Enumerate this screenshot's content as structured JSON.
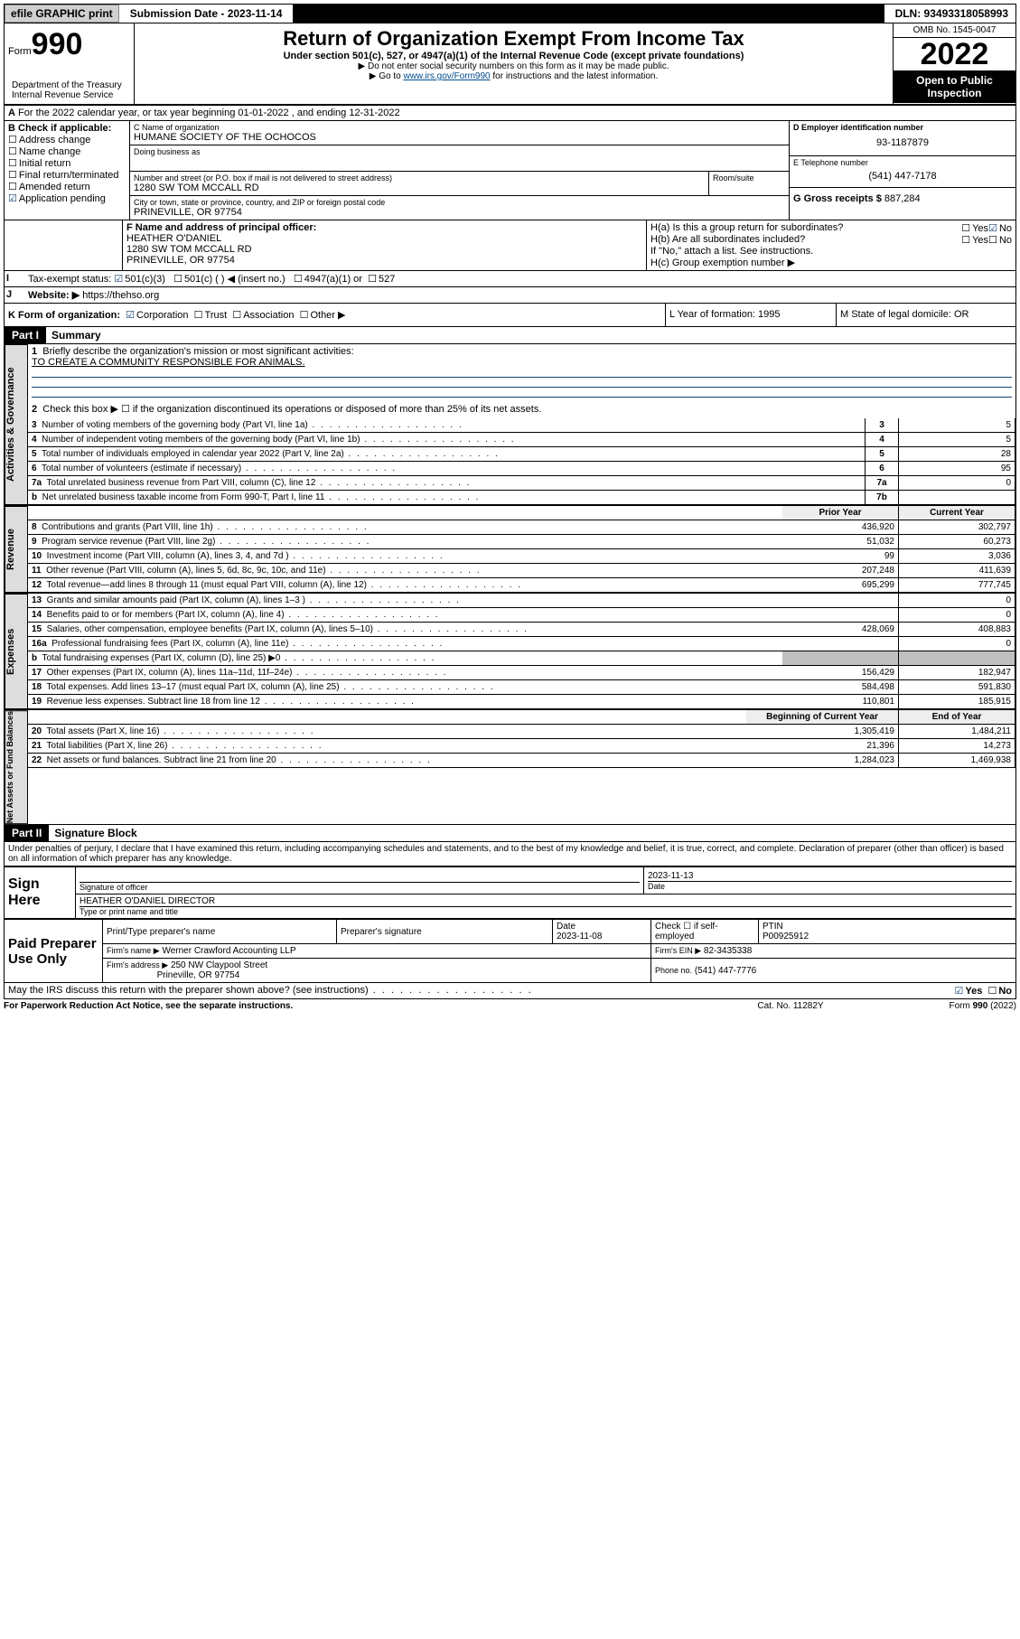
{
  "topbar": {
    "efile": "efile GRAPHIC print",
    "submission_label": "Submission Date - 2023-11-14",
    "dln": "DLN: 93493318058993"
  },
  "header": {
    "form_word": "Form",
    "form_num": "990",
    "title": "Return of Organization Exempt From Income Tax",
    "subtitle": "Under section 501(c), 527, or 4947(a)(1) of the Internal Revenue Code (except private foundations)",
    "note1": "▶ Do not enter social security numbers on this form as it may be made public.",
    "note2_pre": "▶ Go to ",
    "note2_link": "www.irs.gov/Form990",
    "note2_post": " for instructions and the latest information.",
    "dept": "Department of the Treasury\nInternal Revenue Service",
    "omb": "OMB No. 1545-0047",
    "tax_year": "2022",
    "open": "Open to Public Inspection"
  },
  "lineA": {
    "text": "For the 2022 calendar year, or tax year beginning 01-01-2022   , and ending 12-31-2022",
    "label": "A"
  },
  "boxB": {
    "label": "B Check if applicable:",
    "items": [
      "Address change",
      "Name change",
      "Initial return",
      "Final return/terminated",
      "Amended return",
      "Application pending"
    ]
  },
  "boxC": {
    "name_label": "C Name of organization",
    "name": "HUMANE SOCIETY OF THE OCHOCOS",
    "dba_label": "Doing business as",
    "addr_label": "Number and street (or P.O. box if mail is not delivered to street address)",
    "room_label": "Room/suite",
    "addr": "1280 SW TOM MCCALL RD",
    "city_label": "City or town, state or province, country, and ZIP or foreign postal code",
    "city": "PRINEVILLE, OR  97754"
  },
  "boxD": {
    "label": "D Employer identification number",
    "val": "93-1187879"
  },
  "boxE": {
    "label": "E Telephone number",
    "val": "(541) 447-7178"
  },
  "boxG": {
    "label": "G Gross receipts $",
    "val": "887,284"
  },
  "boxF": {
    "label": "F Name and address of principal officer:",
    "l1": "HEATHER O'DANIEL",
    "l2": "1280 SW TOM MCCALL RD",
    "l3": "PRINEVILLE, OR  97754"
  },
  "boxH": {
    "a": "H(a)  Is this a group return for subordinates?",
    "b": "H(b)  Are all subordinates included?",
    "bnote": "If \"No,\" attach a list. See instructions.",
    "c": "H(c)  Group exemption number ▶",
    "yes": "Yes",
    "no": "No"
  },
  "boxI": {
    "label": "Tax-exempt status:",
    "opts": [
      "501(c)(3)",
      "501(c) (  ) ◀ (insert no.)",
      "4947(a)(1) or",
      "527"
    ]
  },
  "boxJ": {
    "label": "Website: ▶",
    "val": "https://thehso.org"
  },
  "boxK": {
    "label": "K Form of organization:",
    "opts": [
      "Corporation",
      "Trust",
      "Association",
      "Other ▶"
    ]
  },
  "boxL": {
    "label": "L Year of formation: 1995"
  },
  "boxM": {
    "label": "M State of legal domicile: OR"
  },
  "part1": {
    "hdr": "Part I",
    "title": "Summary",
    "q1": "Briefly describe the organization's mission or most significant activities:",
    "q1a": "TO CREATE A COMMUNITY RESPONSIBLE FOR ANIMALS.",
    "q2": "Check this box ▶ ☐  if the organization discontinued its operations or disposed of more than 25% of its net assets.",
    "rows_gov": [
      {
        "n": "3",
        "t": "Number of voting members of the governing body (Part VI, line 1a)",
        "ln": "3",
        "v": "5"
      },
      {
        "n": "4",
        "t": "Number of independent voting members of the governing body (Part VI, line 1b)",
        "ln": "4",
        "v": "5"
      },
      {
        "n": "5",
        "t": "Total number of individuals employed in calendar year 2022 (Part V, line 2a)",
        "ln": "5",
        "v": "28"
      },
      {
        "n": "6",
        "t": "Total number of volunteers (estimate if necessary)",
        "ln": "6",
        "v": "95"
      },
      {
        "n": "7a",
        "t": "Total unrelated business revenue from Part VIII, column (C), line 12",
        "ln": "7a",
        "v": "0"
      },
      {
        "n": "b",
        "t": "Net unrelated business taxable income from Form 990-T, Part I, line 11",
        "ln": "7b",
        "v": ""
      }
    ],
    "col_hdr_prior": "Prior Year",
    "col_hdr_curr": "Current Year",
    "rows_rev": [
      {
        "n": "8",
        "t": "Contributions and grants (Part VIII, line 1h)",
        "p": "436,920",
        "c": "302,797"
      },
      {
        "n": "9",
        "t": "Program service revenue (Part VIII, line 2g)",
        "p": "51,032",
        "c": "60,273"
      },
      {
        "n": "10",
        "t": "Investment income (Part VIII, column (A), lines 3, 4, and 7d )",
        "p": "99",
        "c": "3,036"
      },
      {
        "n": "11",
        "t": "Other revenue (Part VIII, column (A), lines 5, 6d, 8c, 9c, 10c, and 11e)",
        "p": "207,248",
        "c": "411,639"
      },
      {
        "n": "12",
        "t": "Total revenue—add lines 8 through 11 (must equal Part VIII, column (A), line 12)",
        "p": "695,299",
        "c": "777,745"
      }
    ],
    "rows_exp": [
      {
        "n": "13",
        "t": "Grants and similar amounts paid (Part IX, column (A), lines 1–3 )",
        "p": "",
        "c": "0"
      },
      {
        "n": "14",
        "t": "Benefits paid to or for members (Part IX, column (A), line 4)",
        "p": "",
        "c": "0"
      },
      {
        "n": "15",
        "t": "Salaries, other compensation, employee benefits (Part IX, column (A), lines 5–10)",
        "p": "428,069",
        "c": "408,883"
      },
      {
        "n": "16a",
        "t": "Professional fundraising fees (Part IX, column (A), line 11e)",
        "p": "",
        "c": "0"
      },
      {
        "n": "b",
        "t": "Total fundraising expenses (Part IX, column (D), line 25) ▶0",
        "p": "grey",
        "c": "grey"
      },
      {
        "n": "17",
        "t": "Other expenses (Part IX, column (A), lines 11a–11d, 11f–24e)",
        "p": "156,429",
        "c": "182,947"
      },
      {
        "n": "18",
        "t": "Total expenses. Add lines 13–17 (must equal Part IX, column (A), line 25)",
        "p": "584,498",
        "c": "591,830"
      },
      {
        "n": "19",
        "t": "Revenue less expenses. Subtract line 18 from line 12",
        "p": "110,801",
        "c": "185,915"
      }
    ],
    "col_hdr_beg": "Beginning of Current Year",
    "col_hdr_end": "End of Year",
    "rows_net": [
      {
        "n": "20",
        "t": "Total assets (Part X, line 16)",
        "p": "1,305,419",
        "c": "1,484,211"
      },
      {
        "n": "21",
        "t": "Total liabilities (Part X, line 26)",
        "p": "21,396",
        "c": "14,273"
      },
      {
        "n": "22",
        "t": "Net assets or fund balances. Subtract line 21 from line 20",
        "p": "1,284,023",
        "c": "1,469,938"
      }
    ],
    "vtabs": {
      "gov": "Activities & Governance",
      "rev": "Revenue",
      "exp": "Expenses",
      "net": "Net Assets or Fund Balances"
    }
  },
  "part2": {
    "hdr": "Part II",
    "title": "Signature Block",
    "decl": "Under penalties of perjury, I declare that I have examined this return, including accompanying schedules and statements, and to the best of my knowledge and belief, it is true, correct, and complete. Declaration of preparer (other than officer) is based on all information of which preparer has any knowledge.",
    "sign_here": "Sign Here",
    "sig_officer": "Signature of officer",
    "date_lbl": "Date",
    "date_val": "2023-11-13",
    "officer_name": "HEATHER O'DANIEL  DIRECTOR",
    "type_name": "Type or print name and title",
    "paid": "Paid Preparer Use Only",
    "pt_name": "Print/Type preparer's name",
    "pt_sig": "Preparer's signature",
    "pt_date": "Date",
    "pt_date_v": "2023-11-08",
    "pt_check": "Check ☐ if self-employed",
    "ptin_lbl": "PTIN",
    "ptin": "P00925912",
    "firm_name_lbl": "Firm's name    ▶",
    "firm_name": "Werner Crawford Accounting LLP",
    "firm_ein_lbl": "Firm's EIN ▶",
    "firm_ein": "82-3435338",
    "firm_addr_lbl": "Firm's address ▶",
    "firm_addr1": "250 NW Claypool Street",
    "firm_addr2": "Prineville, OR  97754",
    "phone_lbl": "Phone no.",
    "phone": "(541) 447-7776",
    "may": "May the IRS discuss this return with the preparer shown above? (see instructions)",
    "yes": "Yes",
    "no": "No"
  },
  "footer": {
    "left": "For Paperwork Reduction Act Notice, see the separate instructions.",
    "mid": "Cat. No. 11282Y",
    "right": "Form 990 (2022)"
  },
  "letters": {
    "I": "I",
    "J": "J"
  }
}
